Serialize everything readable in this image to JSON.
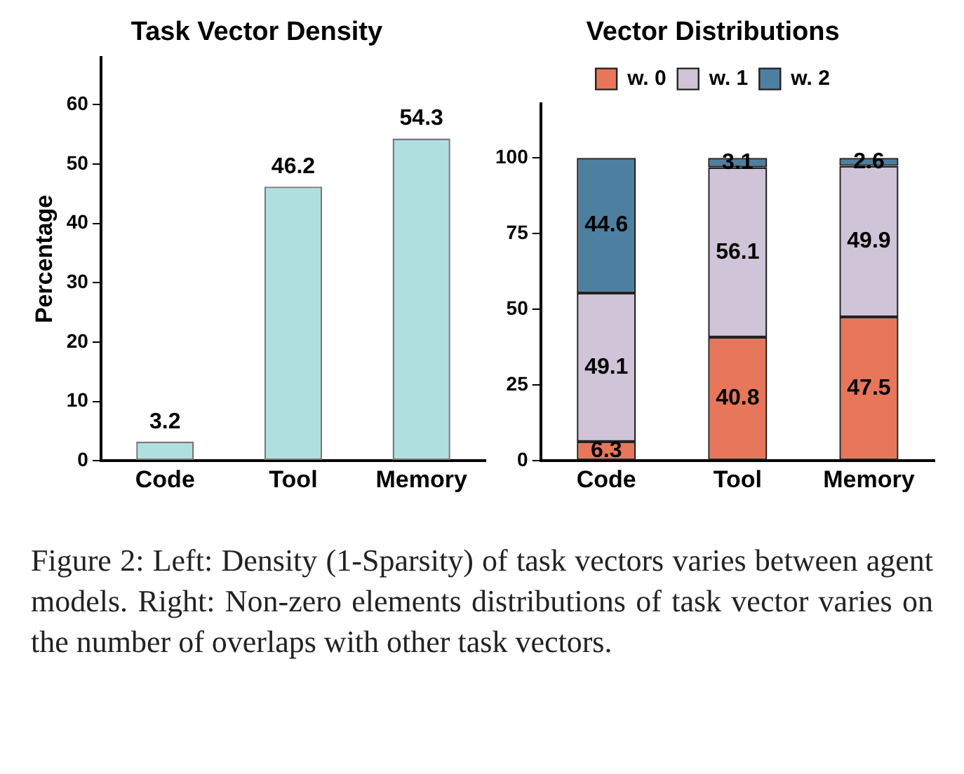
{
  "chart_data": [
    {
      "type": "bar",
      "title": "Task Vector Density",
      "ylabel": "Percentage",
      "categories": [
        "Code",
        "Tool",
        "Memory"
      ],
      "values": [
        3.2,
        46.2,
        54.3
      ],
      "color": "#b0dfe0",
      "ylim": [
        0,
        68
      ],
      "yticks": [
        0,
        10,
        20,
        30,
        40,
        50,
        60
      ],
      "data_labels": true,
      "grid": false,
      "legend": false
    },
    {
      "type": "bar",
      "title": "Vector Distributions",
      "categories": [
        "Code",
        "Tool",
        "Memory"
      ],
      "stacked": true,
      "series": [
        {
          "name": "w. 0",
          "color": "#e8765a",
          "values": [
            6.3,
            40.8,
            47.5
          ]
        },
        {
          "name": "w. 1",
          "color": "#d0c4d8",
          "values": [
            49.1,
            56.1,
            49.9
          ]
        },
        {
          "name": "w. 2",
          "color": "#4d7fa0",
          "values": [
            44.6,
            3.1,
            2.6
          ]
        }
      ],
      "ylim": [
        0,
        118
      ],
      "yticks": [
        0,
        25,
        50,
        75,
        100
      ],
      "data_labels": true,
      "grid": false,
      "legend": "top",
      "annotations": [
        "Figure 2: Left: Density (1-Sparsity) of task vectors varies between agent models. Right: Non-zero elements distributions of task vector varies on the number of overlaps with other task vectors."
      ]
    }
  ]
}
